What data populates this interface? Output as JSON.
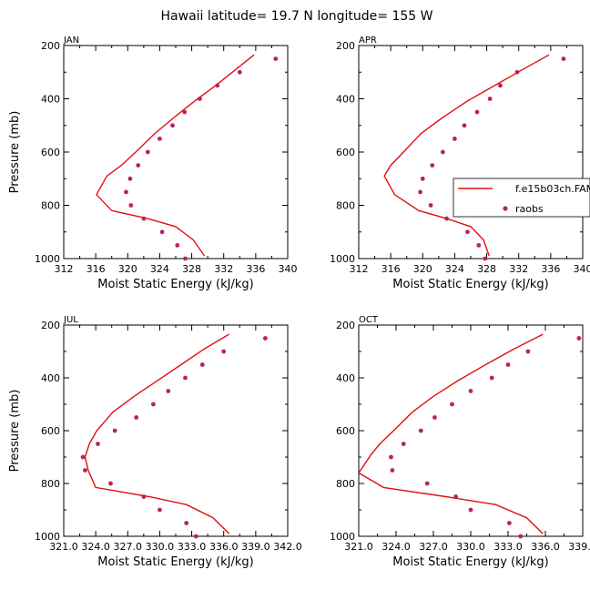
{
  "title": "Hawaii   latitude= 19.7 N longitude= 155 W",
  "legend": {
    "model": "f.e15b03ch.FAMI",
    "obs": "raobs"
  },
  "colors": {
    "model": "#e01010",
    "obs": "#b8245c"
  },
  "chart_data": [
    {
      "type": "line",
      "panel": "JAN",
      "xlabel": "Moist Static Energy (kJ/kg)",
      "ylabel": "Pressure (mb)",
      "xlim": [
        312,
        340
      ],
      "ylim": [
        200,
        1000
      ],
      "xticks": [
        "312",
        "316",
        "320",
        "324",
        "328",
        "332",
        "336",
        "340"
      ],
      "xtick_values": [
        312,
        316,
        320,
        324,
        328,
        332,
        336,
        340
      ],
      "yticks": [
        "200",
        "400",
        "600",
        "800",
        "1000"
      ],
      "ytick_values": [
        200,
        400,
        600,
        800,
        1000
      ],
      "series": [
        {
          "name": "f.e15b03ch.FAMI",
          "kind": "line",
          "x": [
            335.8,
            333.5,
            331.0,
            328.3,
            325.8,
            323.4,
            321.0,
            319.2,
            317.4,
            316.1,
            318.0,
            322.5,
            326.0,
            328.2,
            329.6
          ],
          "y": [
            235,
            290,
            350,
            410,
            470,
            530,
            600,
            650,
            690,
            760,
            820,
            850,
            880,
            930,
            990
          ]
        },
        {
          "name": "raobs",
          "kind": "scatter",
          "x": [
            338.5,
            334.0,
            331.2,
            329.0,
            327.1,
            325.6,
            324.0,
            322.5,
            321.3,
            320.3,
            319.8,
            320.4,
            322.0,
            324.3,
            326.2,
            327.2
          ],
          "y": [
            250,
            300,
            350,
            400,
            450,
            500,
            550,
            600,
            650,
            700,
            750,
            800,
            850,
            900,
            950,
            1000
          ]
        }
      ]
    },
    {
      "type": "line",
      "panel": "APR",
      "xlabel": "Moist Static Energy (kJ/kg)",
      "ylabel": "",
      "xlim": [
        312,
        340
      ],
      "ylim": [
        200,
        1000
      ],
      "xticks": [
        "312",
        "316",
        "320",
        "324",
        "328",
        "332",
        "336",
        "340"
      ],
      "xtick_values": [
        312,
        316,
        320,
        324,
        328,
        332,
        336,
        340
      ],
      "yticks": [
        "200",
        "400",
        "600",
        "800",
        "1000"
      ],
      "ytick_values": [
        200,
        400,
        600,
        800,
        1000
      ],
      "series": [
        {
          "name": "f.e15b03ch.FAMI",
          "kind": "line",
          "x": [
            335.8,
            332.5,
            329.0,
            325.5,
            322.5,
            319.8,
            317.6,
            316.0,
            315.2,
            316.5,
            319.5,
            323.0,
            326.0,
            327.6,
            328.3
          ],
          "y": [
            235,
            290,
            350,
            410,
            470,
            530,
            600,
            650,
            690,
            760,
            820,
            850,
            880,
            930,
            990
          ]
        },
        {
          "name": "raobs",
          "kind": "scatter",
          "x": [
            337.6,
            331.8,
            329.7,
            328.4,
            326.8,
            325.2,
            324.0,
            322.5,
            321.2,
            320.0,
            319.7,
            321.0,
            323.0,
            325.6,
            327.0,
            327.8
          ],
          "y": [
            250,
            300,
            350,
            400,
            450,
            500,
            550,
            600,
            650,
            700,
            750,
            800,
            850,
            900,
            950,
            1000
          ]
        }
      ]
    },
    {
      "type": "line",
      "panel": "JUL",
      "xlabel": "Moist Static Energy (kJ/kg)",
      "ylabel": "Pressure (mb)",
      "xlim": [
        321.0,
        342.0
      ],
      "ylim": [
        200,
        1000
      ],
      "xticks": [
        "321.0",
        "324.0",
        "327.0",
        "330.0",
        "333.0",
        "336.0",
        "339.0",
        "342.0"
      ],
      "xtick_values": [
        321,
        324,
        327,
        330,
        333,
        336,
        339,
        342
      ],
      "yticks": [
        "200",
        "400",
        "600",
        "800",
        "1000"
      ],
      "ytick_values": [
        200,
        400,
        600,
        800,
        1000
      ],
      "series": [
        {
          "name": "f.e15b03ch.FAMI",
          "kind": "line",
          "x": [
            336.5,
            334.2,
            332.0,
            329.8,
            327.6,
            325.6,
            324.1,
            323.4,
            323.0,
            323.3,
            324.0,
            329.0,
            332.5,
            335.0,
            336.5
          ],
          "y": [
            235,
            290,
            350,
            410,
            470,
            530,
            600,
            650,
            700,
            750,
            815,
            850,
            880,
            930,
            990
          ]
        },
        {
          "name": "raobs",
          "kind": "scatter",
          "x": [
            339.9,
            336.0,
            334.0,
            332.4,
            330.8,
            329.4,
            327.8,
            325.8,
            324.2,
            322.8,
            323.0,
            325.4,
            328.5,
            330.0,
            332.5,
            333.4
          ],
          "y": [
            250,
            300,
            350,
            400,
            450,
            500,
            550,
            600,
            650,
            700,
            750,
            800,
            850,
            900,
            950,
            1000
          ]
        }
      ]
    },
    {
      "type": "line",
      "panel": "OCT",
      "xlabel": "Moist Static Energy (kJ/kg)",
      "ylabel": "",
      "xlim": [
        321.0,
        339.0
      ],
      "ylim": [
        200,
        1000
      ],
      "xticks": [
        "321.0",
        "324.0",
        "327.0",
        "330.0",
        "333.0",
        "336.0",
        "339.0"
      ],
      "xtick_values": [
        321,
        324,
        327,
        330,
        333,
        336,
        339
      ],
      "yticks": [
        "200",
        "400",
        "600",
        "800",
        "1000"
      ],
      "ytick_values": [
        200,
        400,
        600,
        800,
        1000
      ],
      "series": [
        {
          "name": "f.e15b03ch.FAMI",
          "kind": "line",
          "x": [
            335.8,
            333.5,
            331.2,
            329.0,
            327.0,
            325.3,
            323.8,
            322.7,
            322.0,
            321.0,
            323.0,
            328.0,
            332.0,
            334.5,
            335.8
          ],
          "y": [
            235,
            290,
            350,
            410,
            470,
            530,
            600,
            650,
            690,
            760,
            815,
            850,
            880,
            930,
            990
          ]
        },
        {
          "name": "raobs",
          "kind": "scatter",
          "x": [
            338.7,
            334.6,
            333.0,
            331.7,
            330.0,
            328.5,
            327.1,
            326.0,
            324.6,
            323.6,
            323.7,
            326.5,
            328.8,
            330.0,
            333.1,
            334.0
          ],
          "y": [
            250,
            300,
            350,
            400,
            450,
            500,
            550,
            600,
            650,
            700,
            750,
            800,
            850,
            900,
            950,
            1000
          ]
        }
      ]
    }
  ]
}
